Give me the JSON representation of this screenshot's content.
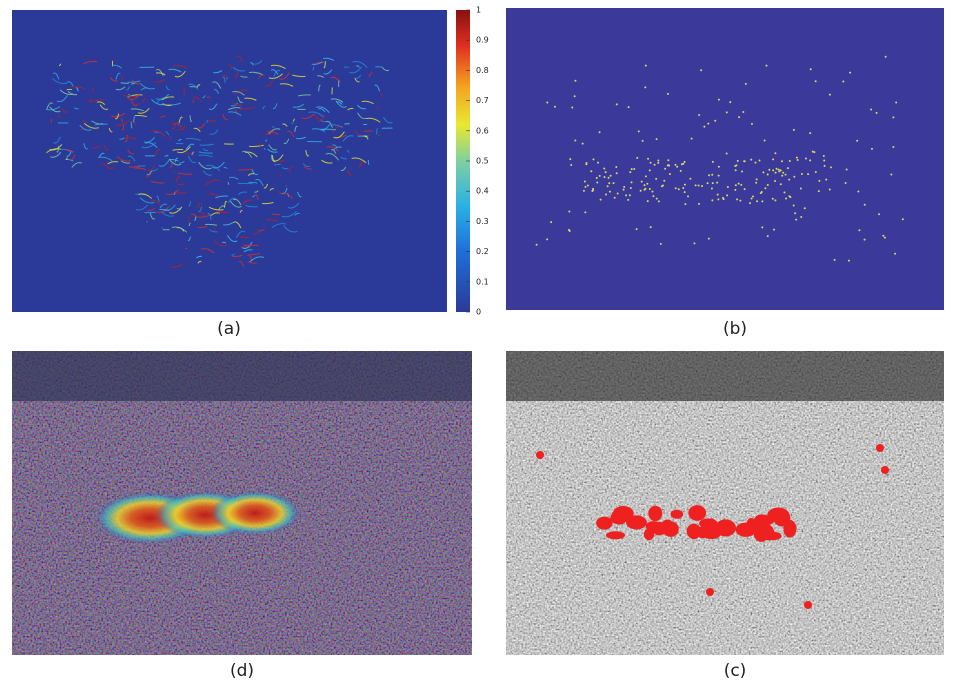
{
  "panels": [
    {
      "label": "(a)"
    },
    {
      "label": "(b)"
    },
    {
      "label": "(d)"
    },
    {
      "label": "(c)"
    }
  ],
  "colorbar": {
    "lim": [
      0,
      1
    ],
    "ticks": [
      0,
      0.1,
      0.2,
      0.3,
      0.4,
      0.5,
      0.6,
      0.7,
      0.8,
      0.9,
      1
    ]
  }
}
